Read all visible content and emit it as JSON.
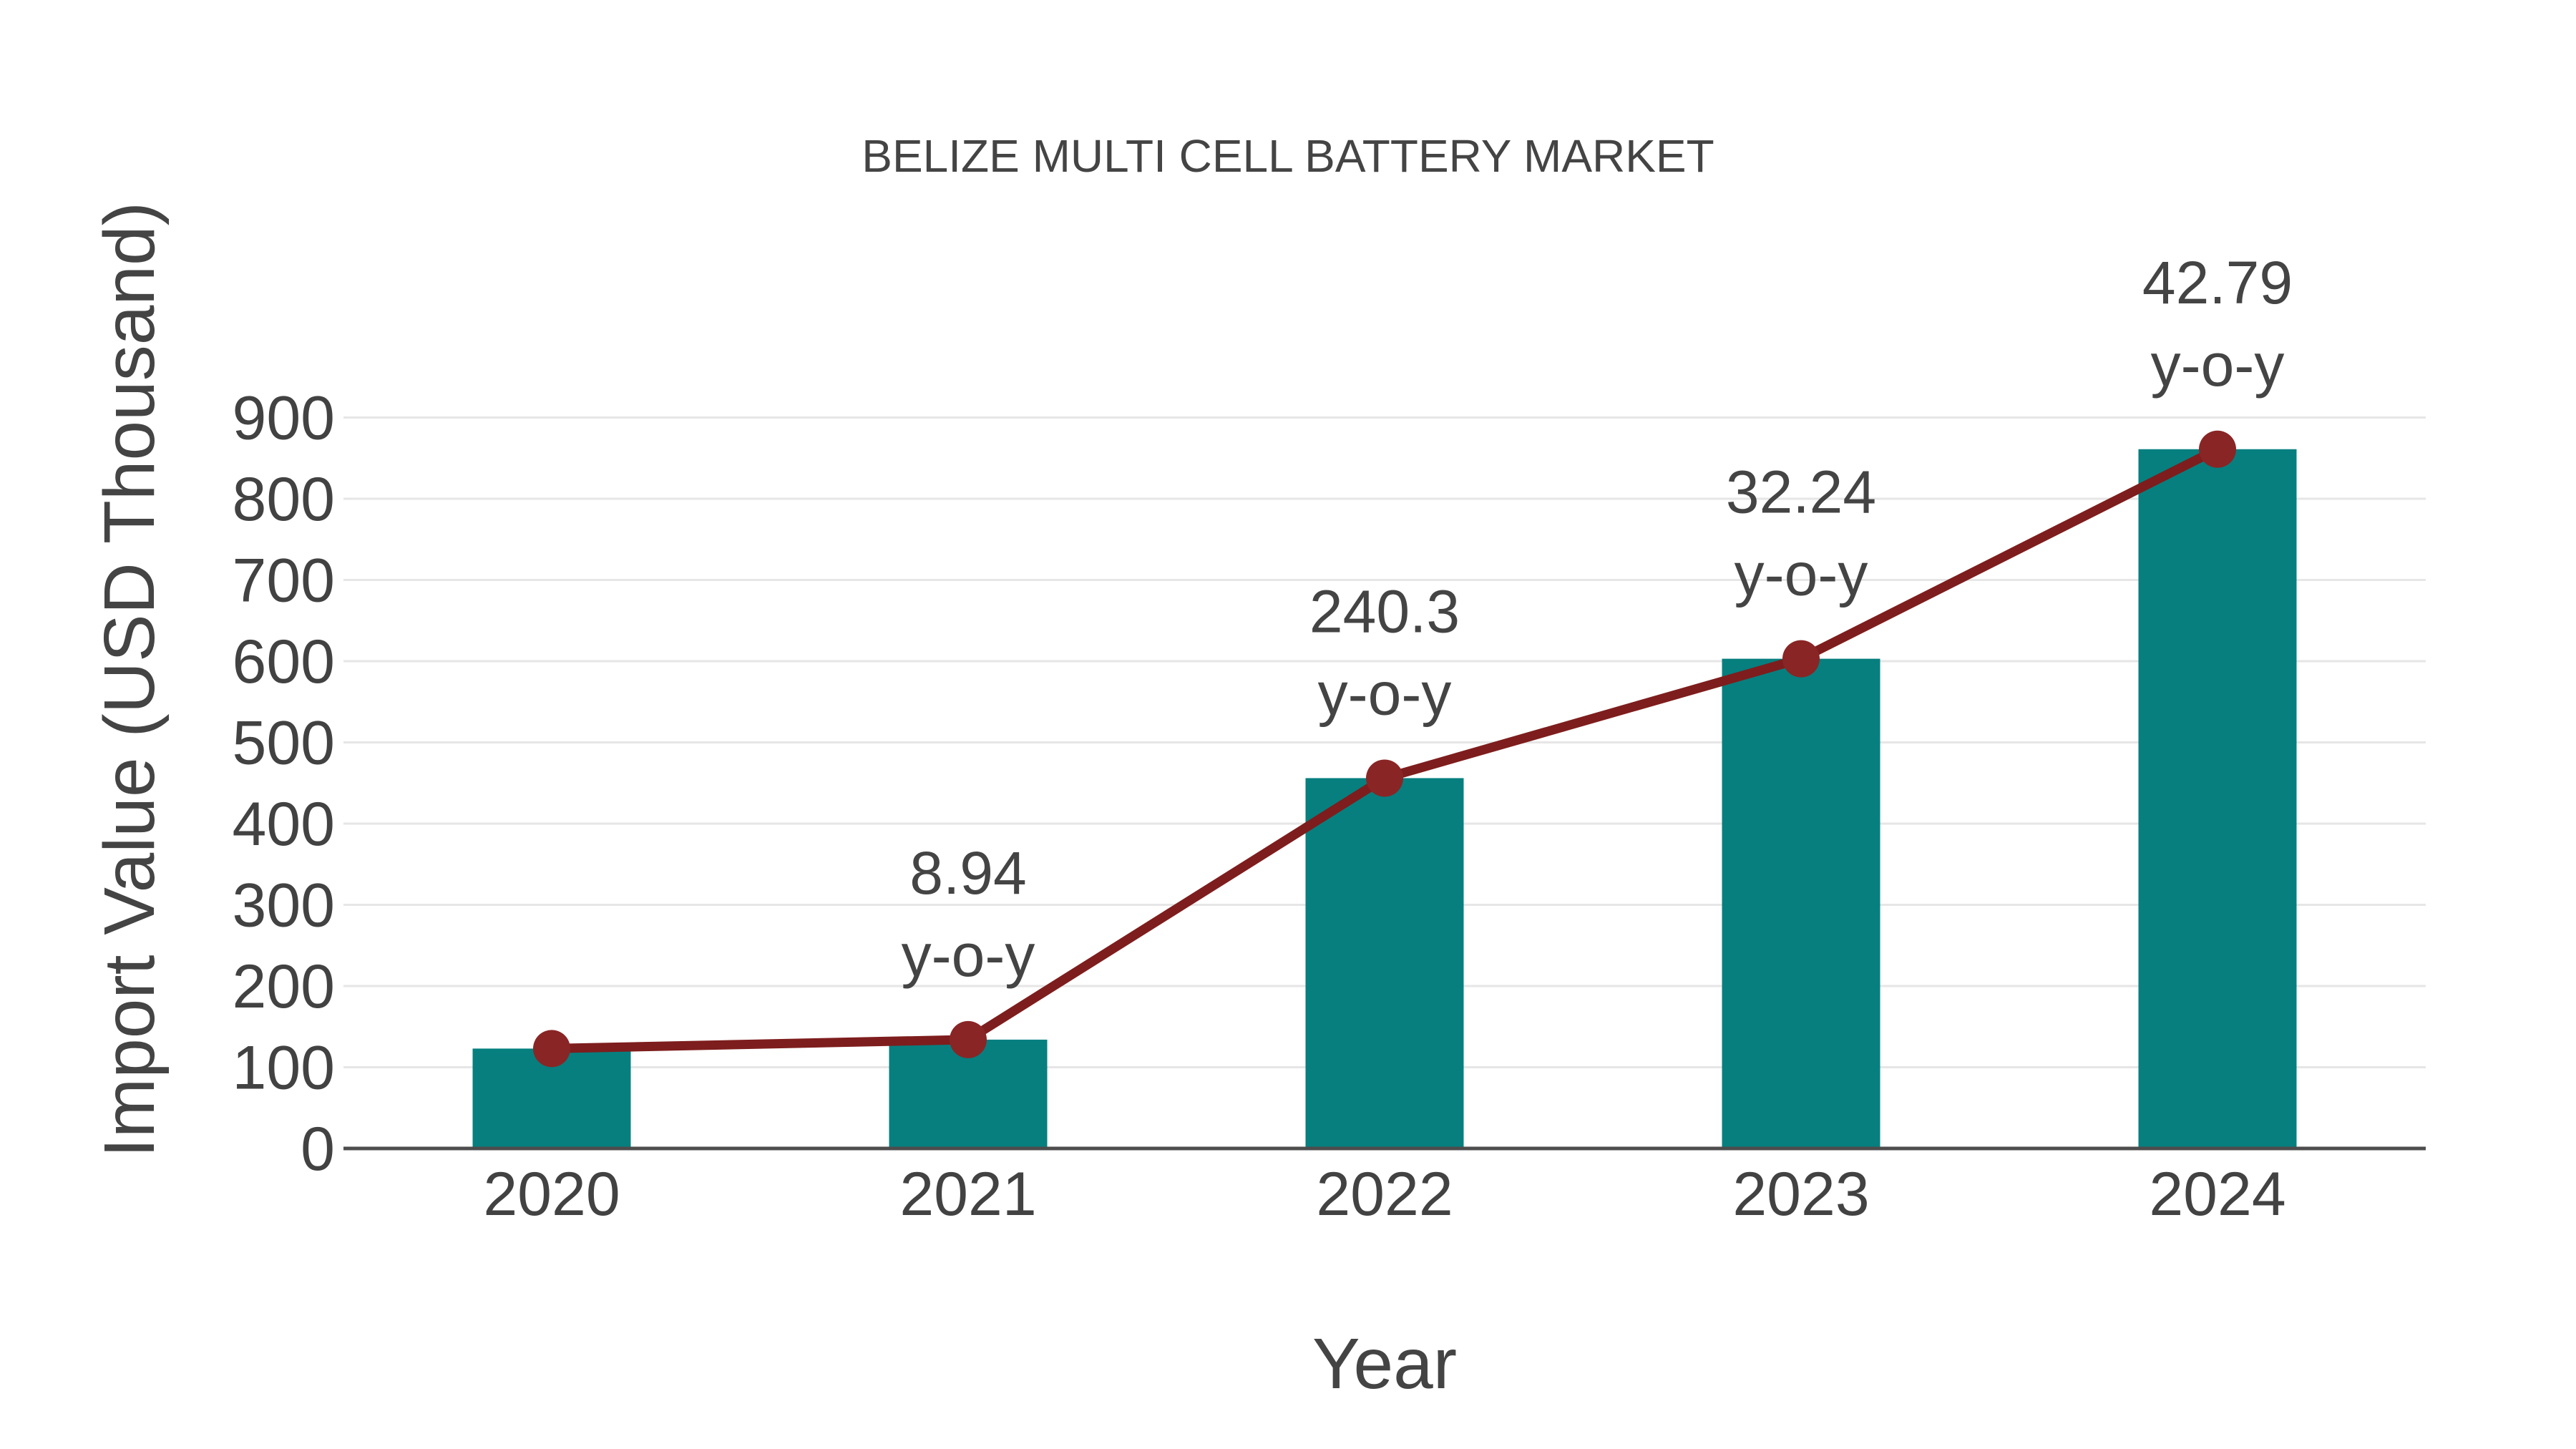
{
  "chart_data": {
    "type": "bar",
    "title": "BELIZE MULTI CELL BATTERY MARKET",
    "xlabel": "Year",
    "ylabel": "Import Value (USD Thousand)",
    "categories": [
      "2020",
      "2021",
      "2022",
      "2023",
      "2024"
    ],
    "series": [
      {
        "name": "Import Value bars",
        "type": "bar",
        "values": [
          123,
          134,
          456,
          603,
          861
        ]
      },
      {
        "name": "Import Value trend line",
        "type": "line",
        "values": [
          123,
          134,
          456,
          603,
          861
        ]
      }
    ],
    "annotations": [
      {
        "category": "2021",
        "value_label": "8.94",
        "unit_label": "y-o-y"
      },
      {
        "category": "2022",
        "value_label": "240.3",
        "unit_label": "y-o-y"
      },
      {
        "category": "2023",
        "value_label": "32.24",
        "unit_label": "y-o-y"
      },
      {
        "category": "2024",
        "value_label": "42.79",
        "unit_label": "y-o-y"
      }
    ],
    "ylim": [
      0,
      900
    ],
    "yticks": [
      0,
      100,
      200,
      300,
      400,
      500,
      600,
      700,
      800,
      900
    ],
    "grid": "horizontal",
    "legend": "none",
    "colors": {
      "bar": "#077f7f",
      "line": "#7e1d1d",
      "marker": "#8a2525",
      "text": "#444444",
      "tick_text": "#424242",
      "grid": "#e6e6e6",
      "axis": "#4d4d4d"
    }
  }
}
